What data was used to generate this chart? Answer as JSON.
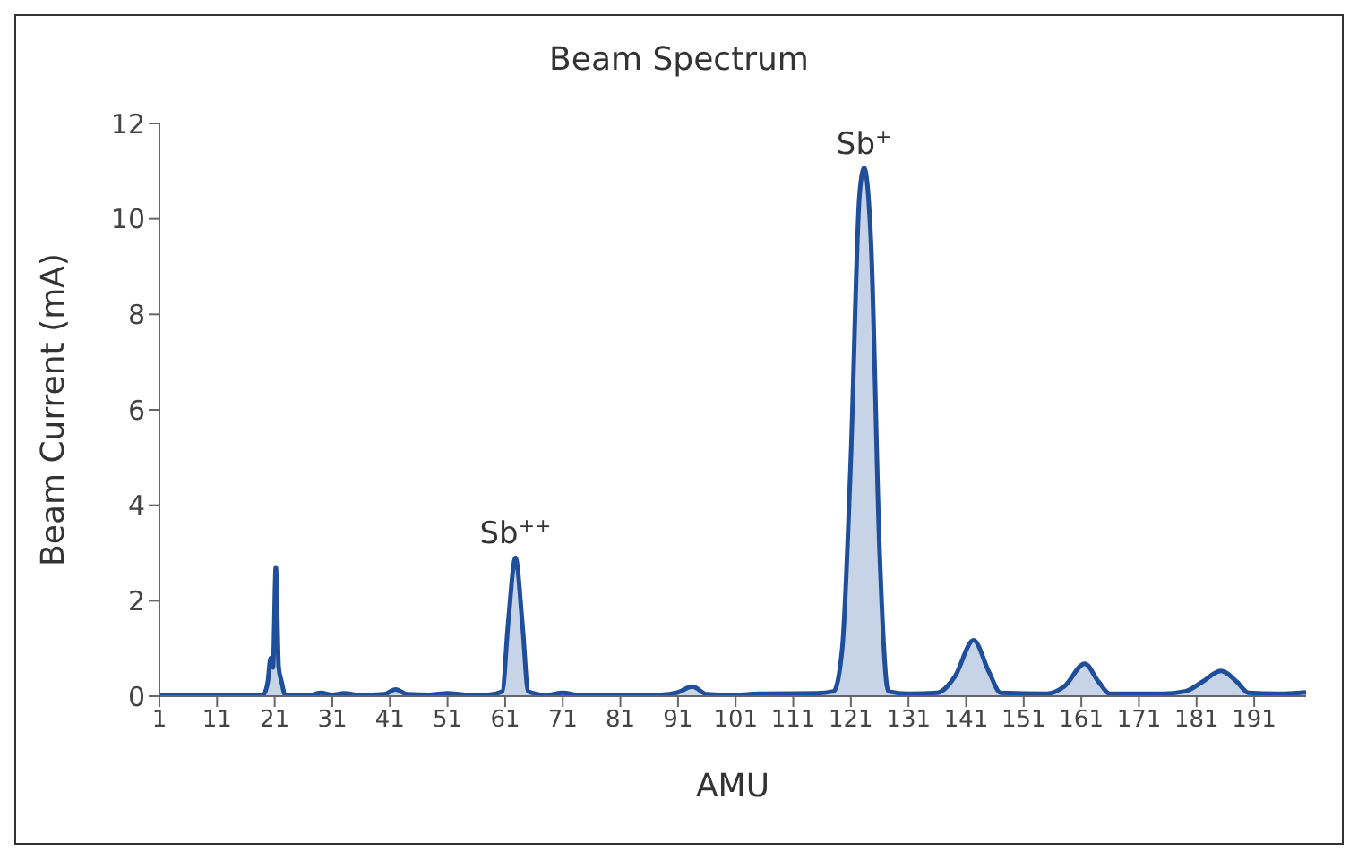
{
  "chart_data": {
    "type": "area",
    "title": "Beam Spectrum",
    "xlabel": "AMU",
    "ylabel": "Beam Current (mA)",
    "x": [
      1,
      5,
      10,
      15,
      19,
      19.8,
      20.3,
      20.7,
      21.2,
      21.7,
      22.2,
      22.8,
      27,
      29,
      31,
      33,
      36,
      40,
      42,
      44,
      48,
      51,
      54,
      58,
      60.5,
      61.5,
      62.8,
      64,
      65,
      66,
      68,
      71,
      74,
      80,
      88,
      91,
      93.5,
      96,
      100,
      105,
      115,
      118,
      119.5,
      121,
      122.5,
      123.3,
      124.5,
      126,
      127.5,
      131,
      136,
      139,
      142.3,
      145,
      147,
      155,
      158,
      161.6,
      164,
      166,
      175,
      179,
      182,
      185.2,
      188,
      190,
      195,
      200
    ],
    "series": [
      {
        "color": "#1f4e9a",
        "values": [
          0.03,
          0.02,
          0.03,
          0.02,
          0.03,
          0.3,
          0.8,
          0.6,
          2.7,
          0.6,
          0.3,
          0.03,
          0.02,
          0.07,
          0.03,
          0.06,
          0.02,
          0.04,
          0.14,
          0.04,
          0.03,
          0.06,
          0.03,
          0.03,
          0.1,
          1.5,
          2.9,
          1.5,
          0.1,
          0.06,
          0.02,
          0.07,
          0.02,
          0.03,
          0.03,
          0.08,
          0.2,
          0.04,
          0.02,
          0.05,
          0.06,
          0.1,
          1.0,
          5,
          10.5,
          11.07,
          9.5,
          3,
          0.1,
          0.05,
          0.07,
          0.4,
          1.17,
          0.5,
          0.07,
          0.05,
          0.2,
          0.68,
          0.3,
          0.05,
          0.05,
          0.1,
          0.3,
          0.53,
          0.3,
          0.07,
          0.05,
          0.08
        ]
      }
    ],
    "xlim": [
      1,
      200
    ],
    "xticks": [
      1,
      11,
      21,
      31,
      41,
      51,
      61,
      71,
      81,
      91,
      101,
      111,
      121,
      131,
      141,
      151,
      161,
      171,
      181,
      191
    ],
    "ylim": [
      0,
      12
    ],
    "yticks": [
      0,
      2,
      4,
      6,
      8,
      10,
      12
    ],
    "annotations": [
      {
        "text": "Sb$^{++}$",
        "x": 62.8,
        "y": 2.9
      },
      {
        "text": "Sb$^{+}$",
        "x": 123.3,
        "y": 11.07
      }
    ],
    "grid": false,
    "legend": false
  }
}
